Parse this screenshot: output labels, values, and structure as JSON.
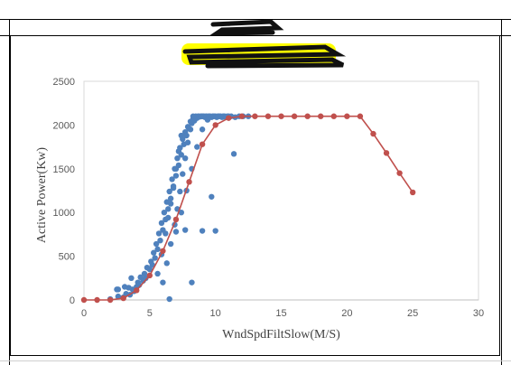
{
  "chart_data": {
    "type": "scatter",
    "title": "",
    "xlabel": "WndSpdFiltSlow(M/S)",
    "ylabel": "Active Power(Kw)",
    "xlim": [
      0,
      30
    ],
    "ylim": [
      0,
      2500
    ],
    "xticks": [
      "0",
      "5",
      "10",
      "15",
      "20",
      "25",
      "30"
    ],
    "yticks": [
      "0",
      "500",
      "1000",
      "1500",
      "2000",
      "2500"
    ],
    "grid": {
      "x": false,
      "y": false
    },
    "legend": "none",
    "series": [
      {
        "kind": "scatter",
        "color": "#4f81bd",
        "x": [
          2.0,
          2.5,
          2.6,
          3.0,
          3.2,
          3.4,
          3.5,
          3.7,
          3.8,
          4.0,
          4.1,
          4.2,
          4.3,
          4.5,
          4.6,
          4.7,
          4.8,
          5.0,
          5.1,
          5.2,
          5.3,
          5.4,
          5.5,
          5.6,
          5.7,
          5.8,
          5.9,
          6.0,
          6.1,
          6.2,
          6.3,
          6.4,
          6.5,
          6.6,
          6.7,
          6.8,
          6.9,
          7.0,
          7.1,
          7.2,
          7.3,
          7.4,
          7.5,
          7.6,
          7.7,
          7.8,
          7.9,
          8.0,
          8.1,
          8.2,
          8.3,
          8.4,
          8.5,
          8.6,
          8.7,
          8.8,
          8.9,
          9.0,
          9.1,
          9.2,
          9.3,
          9.4,
          9.5,
          9.6,
          9.7,
          9.8,
          9.9,
          10.0,
          10.1,
          10.2,
          10.3,
          10.4,
          10.5,
          10.6,
          10.7,
          10.8,
          10.9,
          11.0,
          11.2,
          11.5,
          11.8,
          12.1,
          12.5,
          5.6,
          5.9,
          6.2,
          6.4,
          6.6,
          6.8,
          7.0,
          7.2,
          7.4,
          6.0,
          6.3,
          6.6,
          6.9,
          7.1,
          7.3,
          7.5,
          7.7,
          7.9,
          8.1,
          8.3,
          8.5,
          8.7,
          8.9,
          9.1,
          9.3,
          9.5,
          7.0,
          7.4,
          7.8,
          8.2,
          8.6,
          9.0,
          9.4,
          9.8,
          10.2,
          10.6,
          2.6,
          3.1,
          3.6,
          6.5,
          7.7,
          8.2,
          9.0,
          10.0,
          11.4,
          8.3,
          9.7
        ],
        "y": [
          10,
          120,
          40,
          30,
          70,
          140,
          60,
          120,
          100,
          150,
          200,
          170,
          260,
          220,
          300,
          250,
          370,
          350,
          440,
          400,
          540,
          480,
          640,
          580,
          760,
          680,
          880,
          800,
          1000,
          920,
          1120,
          1040,
          1240,
          1160,
          1380,
          1280,
          1500,
          1420,
          1620,
          1540,
          1740,
          1660,
          1840,
          1780,
          1920,
          1880,
          1980,
          1960,
          2040,
          2020,
          2070,
          2050,
          2090,
          2080,
          2100,
          2095,
          2100,
          2100,
          2100,
          2090,
          2100,
          2080,
          2100,
          2100,
          2090,
          2100,
          2100,
          2100,
          2090,
          2100,
          2100,
          2100,
          2090,
          2100,
          2100,
          2090,
          2100,
          2100,
          2100,
          2090,
          2100,
          2100,
          2100,
          300,
          520,
          760,
          940,
          1100,
          1300,
          1500,
          1700,
          1880,
          200,
          420,
          640,
          860,
          1040,
          1240,
          1440,
          1620,
          1800,
          1950,
          2050,
          2100,
          2100,
          2100,
          2100,
          2100,
          2100,
          780,
          1000,
          1250,
          1500,
          1750,
          1950,
          2060,
          2100,
          2100,
          2100,
          120,
          150,
          250,
          10,
          800,
          200,
          790,
          790,
          1670,
          2100,
          1180
        ]
      },
      {
        "kind": "line",
        "color": "#c0504d",
        "x": [
          0,
          1,
          2,
          3,
          4,
          5,
          6,
          7,
          8,
          9,
          10,
          11,
          12,
          13,
          14,
          15,
          16,
          17,
          18,
          19,
          20,
          21,
          22,
          23,
          24,
          25
        ],
        "y": [
          0,
          0,
          0,
          20,
          110,
          280,
          560,
          920,
          1350,
          1780,
          2000,
          2080,
          2100,
          2100,
          2100,
          2100,
          2100,
          2100,
          2100,
          2100,
          2100,
          2100,
          1900,
          1680,
          1450,
          1230
        ]
      }
    ]
  }
}
